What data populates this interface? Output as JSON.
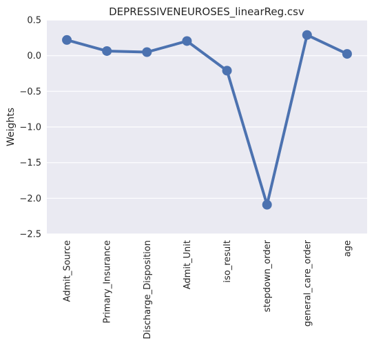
{
  "chart_data": {
    "type": "line",
    "title": "DEPRESSIVENEUROSES_linearReg.csv",
    "xlabel": "",
    "ylabel": "Weights",
    "categories": [
      "Admit_Source",
      "Primary_Insurance",
      "Discharge_Disposition",
      "Admit_Unit",
      "iso_result",
      "stepdown_order",
      "general_care_order",
      "age"
    ],
    "series": [
      {
        "values": [
          0.22,
          0.065,
          0.05,
          0.205,
          -0.21,
          -2.09,
          0.29,
          0.025
        ]
      }
    ],
    "ylim": [
      -2.5,
      0.5
    ],
    "yticks": [
      0.5,
      0.0,
      -0.5,
      -1.0,
      -1.5,
      -2.0,
      -2.5
    ],
    "ytick_labels": [
      "0.5",
      "0.0",
      "−0.5",
      "−1.0",
      "−1.5",
      "−2.0",
      "−2.5"
    ],
    "grid": true,
    "legend": "none",
    "colors": {
      "series": "#4c72b0",
      "background": "#eaeaf2",
      "grid": "#ffffff"
    }
  }
}
